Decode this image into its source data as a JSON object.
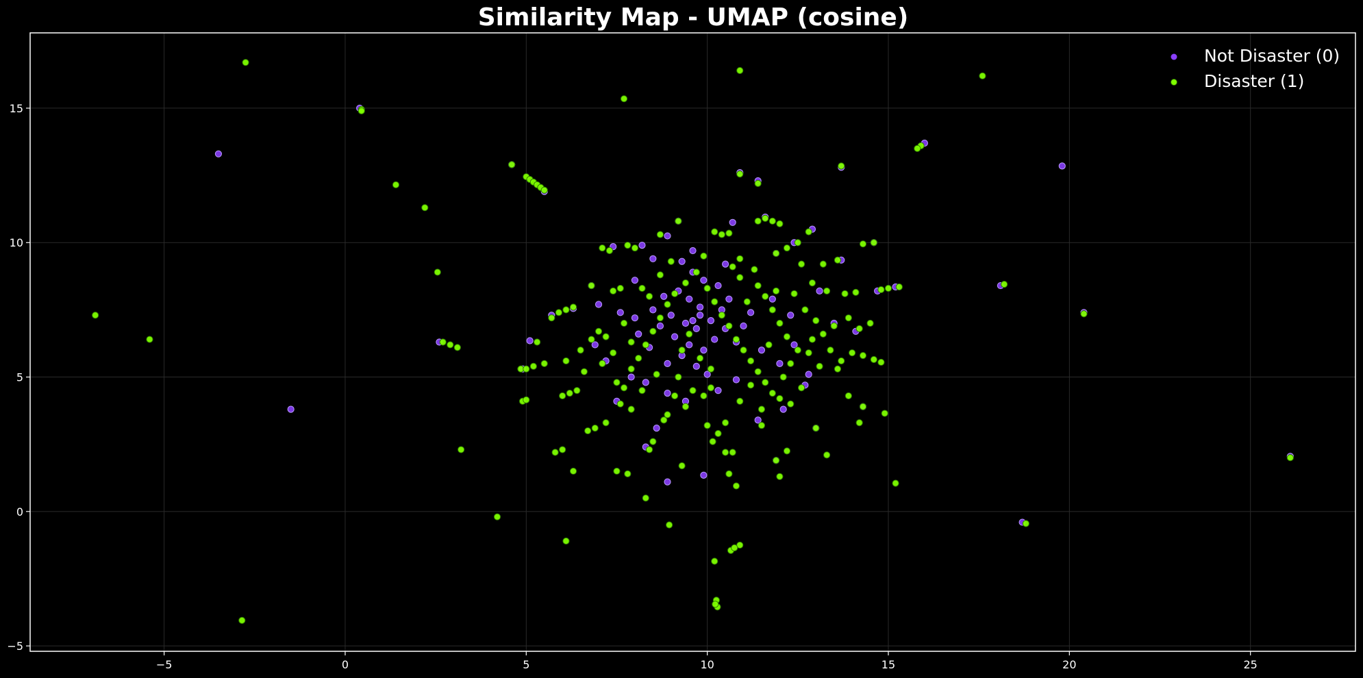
{
  "chart_data": {
    "type": "scatter",
    "title": "Similarity Map - UMAP (cosine)",
    "xlabel": "",
    "ylabel": "",
    "xlim": [
      -8.7,
      27.9
    ],
    "ylim": [
      -5.2,
      17.8
    ],
    "x_ticks": [
      -5,
      0,
      5,
      10,
      15,
      20,
      25
    ],
    "y_ticks": [
      -5,
      0,
      5,
      10,
      15
    ],
    "x_tick_labels": [
      "−5",
      "0",
      "5",
      "10",
      "15",
      "20",
      "25"
    ],
    "y_tick_labels": [
      "−5",
      "0",
      "5",
      "10",
      "15"
    ],
    "grid": true,
    "legend_position": "top-right",
    "background_color": "#000000",
    "series": [
      {
        "name": "Not Disaster (0)",
        "color": "#8a3ffc",
        "points": [
          [
            -3.5,
            13.3
          ],
          [
            -1.5,
            3.8
          ],
          [
            19.8,
            12.85
          ],
          [
            16.0,
            13.7
          ],
          [
            18.1,
            8.4
          ],
          [
            20.4,
            7.4
          ],
          [
            18.7,
            -0.4
          ],
          [
            26.1,
            2.05
          ],
          [
            13.7,
            12.8
          ],
          [
            14.6,
            10.0
          ],
          [
            13.7,
            9.35
          ],
          [
            12.9,
            10.5
          ],
          [
            7.4,
            9.85
          ],
          [
            8.2,
            9.9
          ],
          [
            11.4,
            12.3
          ],
          [
            10.9,
            12.6
          ],
          [
            9.2,
            10.8
          ],
          [
            10.7,
            10.75
          ],
          [
            11.6,
            10.95
          ],
          [
            8.9,
            10.25
          ],
          [
            5.5,
            11.9
          ],
          [
            4.6,
            12.9
          ],
          [
            0.4,
            15.0
          ],
          [
            2.6,
            6.3
          ],
          [
            5.1,
            6.35
          ],
          [
            4.9,
            5.3
          ],
          [
            6.8,
            8.4
          ],
          [
            6.3,
            7.55
          ],
          [
            5.7,
            7.3
          ],
          [
            9.3,
            9.3
          ],
          [
            9.6,
            8.9
          ],
          [
            9.9,
            8.6
          ],
          [
            9.2,
            8.2
          ],
          [
            9.5,
            7.9
          ],
          [
            9.8,
            7.6
          ],
          [
            9.0,
            7.3
          ],
          [
            9.4,
            7.0
          ],
          [
            9.7,
            6.8
          ],
          [
            10.1,
            7.1
          ],
          [
            10.4,
            7.5
          ],
          [
            10.6,
            7.9
          ],
          [
            10.3,
            8.4
          ],
          [
            9.1,
            6.5
          ],
          [
            9.5,
            6.2
          ],
          [
            9.9,
            6.0
          ],
          [
            10.2,
            6.4
          ],
          [
            10.5,
            6.8
          ],
          [
            8.7,
            6.9
          ],
          [
            8.5,
            7.5
          ],
          [
            8.8,
            8.0
          ],
          [
            9.3,
            5.8
          ],
          [
            9.7,
            5.4
          ],
          [
            10.0,
            5.1
          ],
          [
            8.9,
            5.5
          ],
          [
            8.4,
            6.1
          ],
          [
            8.1,
            6.6
          ],
          [
            8.0,
            7.2
          ],
          [
            10.8,
            6.3
          ],
          [
            11.0,
            6.9
          ],
          [
            11.2,
            7.4
          ],
          [
            11.5,
            6.0
          ],
          [
            12.0,
            5.5
          ],
          [
            12.4,
            6.2
          ],
          [
            8.3,
            4.8
          ],
          [
            8.9,
            4.4
          ],
          [
            9.4,
            4.1
          ],
          [
            10.3,
            4.5
          ],
          [
            10.8,
            4.9
          ],
          [
            11.4,
            3.4
          ],
          [
            12.1,
            3.8
          ],
          [
            8.6,
            3.1
          ],
          [
            8.3,
            2.4
          ],
          [
            8.9,
            1.1
          ],
          [
            9.9,
            1.35
          ],
          [
            11.9,
            1.9
          ],
          [
            7.5,
            4.1
          ],
          [
            7.9,
            5.0
          ],
          [
            7.2,
            5.6
          ],
          [
            6.9,
            6.2
          ],
          [
            7.0,
            7.7
          ],
          [
            7.6,
            7.4
          ],
          [
            8.0,
            8.6
          ],
          [
            8.5,
            9.4
          ],
          [
            11.8,
            7.9
          ],
          [
            12.3,
            7.3
          ],
          [
            13.1,
            8.2
          ],
          [
            13.5,
            7.0
          ],
          [
            14.1,
            6.7
          ],
          [
            12.7,
            4.7
          ],
          [
            13.0,
            3.1
          ],
          [
            10.5,
            9.2
          ],
          [
            11.9,
            9.6
          ],
          [
            12.4,
            10.0
          ],
          [
            14.7,
            8.2
          ],
          [
            15.2,
            8.35
          ],
          [
            12.8,
            5.1
          ],
          [
            14.3,
            3.9
          ],
          [
            9.6,
            9.7
          ],
          [
            9.8,
            7.3
          ],
          [
            9.6,
            7.1
          ]
        ]
      },
      {
        "name": "Disaster (1)",
        "color": "#7fff00",
        "points": [
          [
            -2.75,
            16.7
          ],
          [
            -6.9,
            7.3
          ],
          [
            -5.4,
            6.4
          ],
          [
            -2.85,
            -4.05
          ],
          [
            0.45,
            14.95
          ],
          [
            1.4,
            12.15
          ],
          [
            2.2,
            11.3
          ],
          [
            2.55,
            8.9
          ],
          [
            3.2,
            2.3
          ],
          [
            4.2,
            -0.2
          ],
          [
            7.7,
            15.35
          ],
          [
            10.9,
            16.4
          ],
          [
            17.6,
            16.2
          ],
          [
            15.9,
            13.6
          ],
          [
            15.8,
            13.5
          ],
          [
            15.2,
            1.05
          ],
          [
            18.2,
            8.45
          ],
          [
            20.4,
            7.35
          ],
          [
            18.8,
            -0.45
          ],
          [
            26.1,
            2.0
          ],
          [
            13.7,
            12.85
          ],
          [
            11.4,
            12.2
          ],
          [
            10.9,
            12.55
          ],
          [
            4.6,
            12.9
          ],
          [
            5.0,
            12.45
          ],
          [
            5.1,
            12.35
          ],
          [
            5.2,
            12.25
          ],
          [
            5.3,
            12.15
          ],
          [
            5.4,
            12.05
          ],
          [
            5.5,
            11.95
          ],
          [
            0.45,
            14.9
          ],
          [
            2.7,
            6.3
          ],
          [
            2.9,
            6.2
          ],
          [
            3.1,
            6.1
          ],
          [
            4.9,
            4.1
          ],
          [
            5.0,
            4.15
          ],
          [
            4.85,
            5.3
          ],
          [
            5.0,
            5.3
          ],
          [
            5.2,
            5.4
          ],
          [
            5.3,
            6.3
          ],
          [
            5.5,
            5.5
          ],
          [
            5.7,
            7.2
          ],
          [
            5.9,
            7.4
          ],
          [
            6.1,
            7.5
          ],
          [
            6.3,
            7.6
          ],
          [
            6.8,
            8.4
          ],
          [
            7.1,
            9.8
          ],
          [
            7.3,
            9.7
          ],
          [
            7.8,
            9.9
          ],
          [
            8.0,
            9.8
          ],
          [
            8.2,
            8.3
          ],
          [
            7.4,
            8.2
          ],
          [
            7.6,
            8.3
          ],
          [
            8.7,
            10.3
          ],
          [
            9.2,
            10.8
          ],
          [
            9.9,
            9.5
          ],
          [
            10.2,
            10.4
          ],
          [
            10.4,
            10.3
          ],
          [
            10.6,
            10.35
          ],
          [
            10.9,
            9.4
          ],
          [
            11.4,
            10.8
          ],
          [
            11.6,
            10.9
          ],
          [
            11.8,
            10.8
          ],
          [
            12.0,
            10.7
          ],
          [
            12.5,
            10.0
          ],
          [
            12.8,
            10.4
          ],
          [
            12.2,
            9.8
          ],
          [
            11.9,
            9.6
          ],
          [
            13.6,
            9.35
          ],
          [
            14.3,
            9.95
          ],
          [
            14.6,
            10.0
          ],
          [
            13.8,
            8.1
          ],
          [
            14.1,
            8.15
          ],
          [
            14.8,
            8.25
          ],
          [
            15.0,
            8.3
          ],
          [
            15.3,
            8.35
          ],
          [
            14.5,
            7.0
          ],
          [
            14.2,
            6.8
          ],
          [
            13.9,
            7.2
          ],
          [
            13.5,
            6.9
          ],
          [
            14.0,
            5.9
          ],
          [
            14.3,
            5.8
          ],
          [
            14.6,
            5.65
          ],
          [
            14.8,
            5.55
          ],
          [
            13.7,
            5.6
          ],
          [
            13.4,
            6.0
          ],
          [
            13.1,
            5.4
          ],
          [
            12.8,
            5.9
          ],
          [
            12.6,
            4.6
          ],
          [
            12.3,
            4.0
          ],
          [
            12.0,
            4.2
          ],
          [
            13.9,
            4.3
          ],
          [
            14.3,
            3.9
          ],
          [
            14.9,
            3.65
          ],
          [
            14.2,
            3.3
          ],
          [
            13.0,
            3.1
          ],
          [
            13.3,
            2.1
          ],
          [
            12.2,
            2.25
          ],
          [
            11.9,
            1.9
          ],
          [
            12.0,
            1.3
          ],
          [
            11.5,
            3.2
          ],
          [
            11.2,
            4.7
          ],
          [
            10.9,
            4.1
          ],
          [
            10.5,
            3.3
          ],
          [
            10.3,
            2.9
          ],
          [
            10.15,
            2.6
          ],
          [
            10.0,
            3.2
          ],
          [
            10.5,
            2.2
          ],
          [
            10.7,
            2.2
          ],
          [
            10.8,
            0.95
          ],
          [
            10.6,
            1.4
          ],
          [
            10.9,
            -1.25
          ],
          [
            10.65,
            -1.45
          ],
          [
            10.75,
            -1.35
          ],
          [
            10.2,
            -1.85
          ],
          [
            10.25,
            -3.3
          ],
          [
            10.28,
            -3.55
          ],
          [
            10.22,
            -3.45
          ],
          [
            8.95,
            -0.5
          ],
          [
            8.3,
            0.5
          ],
          [
            8.4,
            2.3
          ],
          [
            8.5,
            2.6
          ],
          [
            8.8,
            3.4
          ],
          [
            8.9,
            3.6
          ],
          [
            9.3,
            1.7
          ],
          [
            9.1,
            4.3
          ],
          [
            9.4,
            3.9
          ],
          [
            9.6,
            4.5
          ],
          [
            9.9,
            4.3
          ],
          [
            10.1,
            4.6
          ],
          [
            8.2,
            4.5
          ],
          [
            7.9,
            3.8
          ],
          [
            7.6,
            4.0
          ],
          [
            7.2,
            3.3
          ],
          [
            6.9,
            3.1
          ],
          [
            6.7,
            3.0
          ],
          [
            7.5,
            1.5
          ],
          [
            7.8,
            1.4
          ],
          [
            6.1,
            -1.1
          ],
          [
            6.3,
            1.5
          ],
          [
            6.0,
            2.3
          ],
          [
            5.8,
            2.2
          ],
          [
            6.0,
            4.3
          ],
          [
            6.2,
            4.4
          ],
          [
            6.4,
            4.5
          ],
          [
            6.6,
            5.2
          ],
          [
            6.1,
            5.6
          ],
          [
            6.5,
            6.0
          ],
          [
            6.8,
            6.4
          ],
          [
            7.0,
            6.7
          ],
          [
            7.2,
            6.5
          ],
          [
            7.4,
            5.9
          ],
          [
            7.1,
            5.5
          ],
          [
            7.5,
            4.8
          ],
          [
            7.7,
            4.6
          ],
          [
            7.9,
            5.3
          ],
          [
            8.1,
            5.7
          ],
          [
            8.3,
            6.2
          ],
          [
            8.5,
            6.7
          ],
          [
            8.7,
            7.2
          ],
          [
            8.9,
            7.7
          ],
          [
            9.1,
            8.1
          ],
          [
            9.4,
            8.5
          ],
          [
            9.7,
            8.9
          ],
          [
            10.0,
            8.3
          ],
          [
            10.2,
            7.8
          ],
          [
            10.4,
            7.3
          ],
          [
            10.6,
            6.9
          ],
          [
            10.8,
            6.4
          ],
          [
            11.0,
            6.0
          ],
          [
            11.2,
            5.6
          ],
          [
            11.4,
            5.2
          ],
          [
            11.6,
            4.8
          ],
          [
            11.8,
            4.4
          ],
          [
            12.1,
            5.0
          ],
          [
            12.3,
            5.5
          ],
          [
            12.5,
            6.0
          ],
          [
            12.2,
            6.5
          ],
          [
            12.0,
            7.0
          ],
          [
            11.8,
            7.5
          ],
          [
            11.6,
            8.0
          ],
          [
            11.4,
            8.4
          ],
          [
            11.9,
            8.2
          ],
          [
            12.4,
            8.1
          ],
          [
            12.7,
            7.5
          ],
          [
            13.0,
            7.1
          ],
          [
            13.2,
            6.6
          ],
          [
            11.1,
            7.8
          ],
          [
            10.9,
            8.7
          ],
          [
            10.7,
            9.1
          ],
          [
            9.5,
            6.6
          ],
          [
            9.3,
            6.0
          ],
          [
            9.8,
            5.7
          ],
          [
            10.1,
            5.3
          ],
          [
            8.6,
            5.1
          ],
          [
            8.4,
            8.0
          ],
          [
            8.7,
            8.8
          ],
          [
            9.0,
            9.3
          ],
          [
            7.7,
            7.0
          ],
          [
            7.9,
            6.3
          ],
          [
            12.9,
            8.5
          ],
          [
            13.3,
            8.2
          ],
          [
            11.3,
            9.0
          ],
          [
            12.6,
            9.2
          ],
          [
            13.2,
            9.2
          ],
          [
            11.7,
            6.2
          ],
          [
            12.9,
            6.4
          ],
          [
            13.6,
            5.3
          ],
          [
            11.5,
            3.8
          ],
          [
            9.2,
            5.0
          ]
        ]
      }
    ]
  }
}
